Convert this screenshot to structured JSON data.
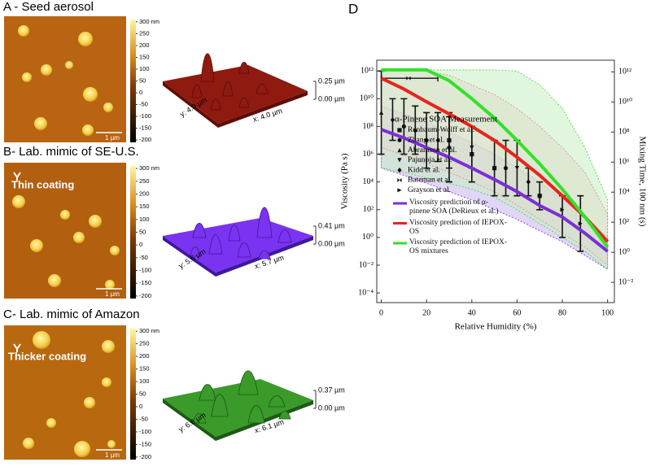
{
  "panels": [
    {
      "label": "A - Seed aerosol",
      "colorbar_lim": [
        -210,
        310
      ],
      "colorbar_ticks": [
        {
          "value": 300,
          "label": "300 nm"
        },
        250,
        200,
        150,
        100,
        50,
        0,
        -50,
        -100,
        -150,
        -200
      ],
      "scale_bar": "1 µm",
      "surface": {
        "y_label": "y: 4.0 µm",
        "x_label": "x: 4.0 µm",
        "z_top": "0.25 µm",
        "z_bottom": "0.00 µm"
      }
    },
    {
      "label": "B- Lab. mimic of SE-U.S.",
      "annotation": "Thin coating",
      "colorbar_lim": [
        -210,
        310
      ],
      "colorbar_ticks": [
        {
          "value": 300,
          "label": "300 nm"
        },
        250,
        200,
        150,
        100,
        50,
        0,
        -50,
        -100,
        -150,
        -200
      ],
      "scale_bar": "1 µm",
      "surface": {
        "y_label": "y: 5.6 µm",
        "x_label": "x: 5.7 µm",
        "z_top": "0.41 µm",
        "z_bottom": "0.00 µm"
      }
    },
    {
      "label": "C- Lab. mimic of Amazon",
      "annotation": "Thicker coating",
      "colorbar_lim": [
        -210,
        310
      ],
      "colorbar_ticks": [
        {
          "value": 300,
          "label": "300 nm"
        },
        250,
        200,
        150,
        100,
        50,
        0,
        -50,
        -100,
        -150,
        -200
      ],
      "scale_bar": "1 µm",
      "surface": {
        "y_label": "y: 6.6 µm",
        "x_label": "x: 6.1 µm",
        "z_top": "0.37 µm",
        "z_bottom": "0.00 µm"
      }
    }
  ],
  "chart_data": {
    "type": "line",
    "panel_label": "D",
    "x_label": "Relative Humidity (%)",
    "y_label": "Viscosity (Pa s)",
    "y2_label": "Mixing Time, 100 nm (s)",
    "xlim": [
      -2,
      103
    ],
    "xticks": [
      0,
      20,
      40,
      60,
      80,
      100
    ],
    "ylim": [
      2e-05,
      6000000000000.0
    ],
    "log_y": true,
    "yticks": [
      {
        "value": 0.0001,
        "label": "10⁻⁴"
      },
      {
        "value": 0.01,
        "label": "10⁻²"
      },
      {
        "value": 1,
        "label": "10⁰"
      },
      {
        "value": 100,
        "label": "10²"
      },
      {
        "value": 10000.0,
        "label": "10⁴"
      },
      {
        "value": 1000000.0,
        "label": "10⁶"
      },
      {
        "value": 100000000.0,
        "label": "10⁸"
      },
      {
        "value": 10000000000.0,
        "label": "10¹⁰"
      },
      {
        "value": 1000000000000.0,
        "label": "10¹²"
      }
    ],
    "y2lim": [
      0.00045,
      6000000000000.0
    ],
    "y2ticks": [
      {
        "value": 0.01,
        "label": "10⁻²"
      },
      {
        "value": 1,
        "label": "10⁰"
      },
      {
        "value": 100,
        "label": "10²"
      },
      {
        "value": 10000.0,
        "label": "10⁴"
      },
      {
        "value": 1000000.0,
        "label": "10⁶"
      },
      {
        "value": 100000000.0,
        "label": "10⁸"
      },
      {
        "value": 10000000000.0,
        "label": "10¹⁰"
      },
      {
        "value": 1000000000000.0,
        "label": "10¹²"
      }
    ],
    "grid": false,
    "x": [
      0,
      10,
      20,
      30,
      40,
      50,
      60,
      70,
      80,
      90,
      100
    ],
    "series": [
      {
        "name": "Viscosity prediction of α-pinene SOA (DeRieux et al.)",
        "color": "#7b2fd6",
        "band_color": "#c9b5f0",
        "values": [
          60000000.0,
          15000000.0,
          3000000.0,
          600000.0,
          100000.0,
          15000.0,
          2000.0,
          200.0,
          30.0,
          2,
          0.1
        ],
        "lower": [
          100000.0,
          30000.0,
          8000.0,
          2000.0,
          500.0,
          100.0,
          20.0,
          3,
          0.5,
          0.05,
          0.005
        ],
        "upper": [
          3000000000.0,
          800000000.0,
          200000000.0,
          40000000.0,
          7000000.0,
          1000000.0,
          100000.0,
          10000.0,
          600.0,
          30.0,
          1
        ]
      },
      {
        "name": "Viscosity prediction of IEPOX-OS",
        "color": "#e8241c",
        "band_color": "#f7c4cf",
        "values": [
          300000000000.0,
          50000000000.0,
          6000000000.0,
          800000000.0,
          100000000.0,
          10000000.0,
          600000.0,
          30000.0,
          1000.0,
          30.0,
          0.5
        ],
        "lower": [
          3000000.0,
          800000.0,
          200000.0,
          50000.0,
          10000.0,
          2000.0,
          200.0,
          20.0,
          2,
          0.2,
          0.01
        ],
        "upper": [
          1000000000000.0,
          1000000000000.0,
          1000000000000.0,
          500000000000.0,
          100000000000.0,
          20000000000.0,
          2000000000.0,
          100000000.0,
          3000000.0,
          50000.0,
          50.0
        ]
      },
      {
        "name": "Viscosity prediction of IEPOX-OS mixtures",
        "color": "#33e02a",
        "band_color": "#c8efc4",
        "values": [
          1200000000000.0,
          1200000000000.0,
          1200000000000.0,
          200000000000.0,
          10000000000.0,
          400000000.0,
          10000000.0,
          200000.0,
          3000.0,
          30.0,
          0.2
        ],
        "lower": [
          100000.0,
          50000.0,
          20000.0,
          8000.0,
          3000.0,
          800.0,
          100.0,
          10.0,
          1,
          0.1,
          0.005
        ],
        "upper": [
          1200000000000.0,
          1200000000000.0,
          1200000000000.0,
          1200000000000.0,
          1200000000000.0,
          1200000000000.0,
          1000000000000.0,
          100000000000.0,
          2000000000.0,
          3000000.0,
          500.0
        ]
      }
    ],
    "measurement_title": "α-Pinene SOA Measurement",
    "measurements": [
      {
        "name": "Renbaum-Wolff et al.",
        "marker": "square",
        "x": [
          30,
          40,
          50,
          70
        ],
        "values": [
          10000000.0,
          1000000.0,
          100000.0,
          1000.0
        ],
        "lower": [
          100000.0,
          10000.0,
          1000.0,
          100.0
        ],
        "upper": [
          1000000000.0,
          100000000.0,
          10000000.0,
          10000.0
        ]
      },
      {
        "name": "Zhang et al.",
        "marker": "circle",
        "x": [
          10,
          20,
          30,
          55
        ],
        "values": [
          100000000.0,
          10000000.0,
          3000000.0,
          100000.0
        ],
        "lower": [
          1000000.0,
          100000.0,
          10000.0,
          1000.0
        ],
        "upper": [
          10000000000.0,
          1000000000.0,
          500000000.0,
          10000000.0
        ]
      },
      {
        "name": "Abramson et al.",
        "marker": "triangle-up",
        "x": [
          0
        ],
        "values": [
          1000000000.0
        ],
        "lower": [
          1000000.0
        ],
        "upper": [
          1000000000000.0
        ]
      },
      {
        "name": "Pajunoja et al.",
        "marker": "triangle-down",
        "x": [
          40,
          60
        ],
        "values": [
          3000000.0,
          100000.0
        ],
        "lower": [
          100000.0,
          1000.0
        ],
        "upper": [
          100000000.0,
          10000000.0
        ]
      },
      {
        "name": "Kidd et al.",
        "marker": "diamond",
        "x": [
          5,
          15,
          25,
          65
        ],
        "values": [
          300000000.0,
          50000000.0,
          10000000.0,
          10000.0
        ],
        "lower": [
          10000000.0,
          1000000.0,
          300000.0,
          1000.0
        ],
        "upper": [
          10000000000.0,
          3000000000.0,
          1000000000.0,
          100000.0
        ]
      },
      {
        "name": "Bateman et al.",
        "marker": "bowtie",
        "x": [
          12
        ],
        "values": [
          300000000000.0
        ],
        "x_lower": [
          0
        ],
        "x_upper": [
          25
        ]
      },
      {
        "name": "Grayson et al.",
        "marker": "triangle-right",
        "x": [
          80,
          88
        ],
        "values": [
          100.0,
          10.0
        ],
        "lower": [
          1,
          0.1
        ],
        "upper": [
          1000.0,
          1000.0
        ]
      }
    ]
  }
}
